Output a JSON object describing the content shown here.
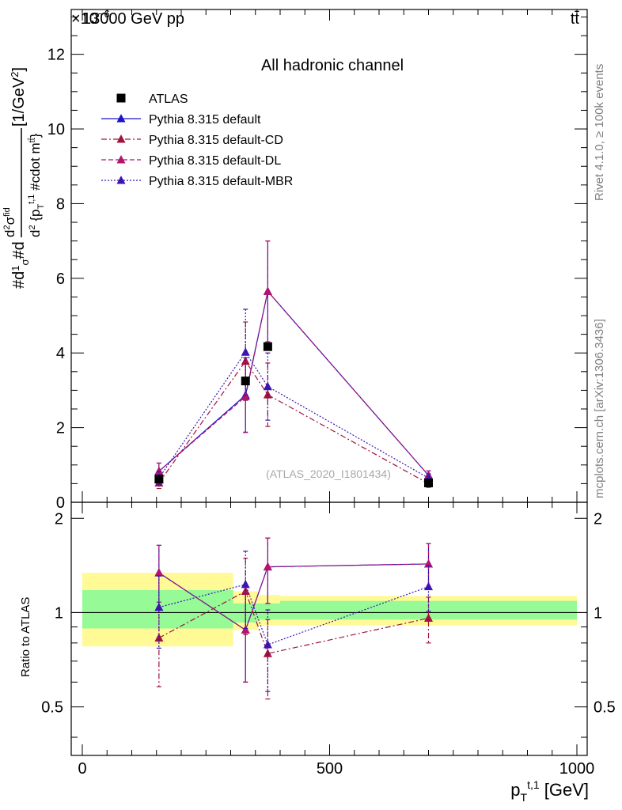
{
  "header": {
    "energy_label": "13000 GeV pp",
    "exponent_label": "×10",
    "exponent_power": "−6",
    "process_label": "tt̄"
  },
  "side_labels": {
    "rivet": "Rivet 4.1.0, ≥ 100k events",
    "mcplots": "mcplots.cern.ch [arXiv:1306.3436]"
  },
  "watermark": "(ATLAS_2020_I1801434)",
  "chart_data": [
    {
      "type": "line",
      "title": "All hadronic channel",
      "ylabel": "#d#frac{1}{σ}#d#frac{d^{2}σ^{fid}}{d^{2} {p_{T}^{t,1} #cdot m^{tt̄}}} [1/GeV²]",
      "xlim": [
        0,
        1000
      ],
      "ylim": [
        0,
        13.2
      ],
      "y_multiplier": "1e-6",
      "yticks": [
        0,
        2,
        4,
        6,
        8,
        10,
        12
      ],
      "xticks": [
        0,
        500,
        1000
      ],
      "legend_position": "top-left",
      "series": [
        {
          "name": "ATLAS",
          "marker": "square",
          "color": "#000000",
          "points": [
            {
              "x": 155,
              "y": 0.62
            },
            {
              "x": 330,
              "y": 3.25
            },
            {
              "x": 375,
              "y": 4.17
            },
            {
              "x": 700,
              "y": 0.52
            }
          ]
        },
        {
          "name": "Pythia 8.315 default",
          "marker": "triangle",
          "color": "#1b14c8",
          "line": "solid",
          "points": [
            {
              "x": 155,
              "y": 0.83,
              "err": 0.22
            },
            {
              "x": 330,
              "y": 2.87,
              "err": 1.0
            },
            {
              "x": 375,
              "y": 5.65,
              "err": 1.35
            },
            {
              "x": 700,
              "y": 0.72,
              "err": 0.12
            }
          ]
        },
        {
          "name": "Pythia 8.315 default-CD",
          "marker": "triangle",
          "color": "#a0143c",
          "line": "dashdot",
          "points": [
            {
              "x": 155,
              "y": 0.52,
              "err": 0.15
            },
            {
              "x": 330,
              "y": 3.78,
              "err": 1.05
            },
            {
              "x": 375,
              "y": 2.88,
              "err": 0.85
            },
            {
              "x": 700,
              "y": 0.5,
              "err": 0.1
            }
          ]
        },
        {
          "name": "Pythia 8.315 default-DL",
          "marker": "triangle",
          "color": "#b4146e",
          "line": "dashed",
          "points": [
            {
              "x": 155,
              "y": 0.83,
              "err": 0.22
            },
            {
              "x": 330,
              "y": 2.83,
              "err": 0.95
            },
            {
              "x": 375,
              "y": 5.65,
              "err": 1.35
            },
            {
              "x": 700,
              "y": 0.72,
              "err": 0.12
            }
          ]
        },
        {
          "name": "Pythia 8.315 default-MBR",
          "marker": "triangle",
          "color": "#3c14b4",
          "line": "dotted",
          "points": [
            {
              "x": 155,
              "y": 0.65,
              "err": 0.18
            },
            {
              "x": 330,
              "y": 4.02,
              "err": 1.15
            },
            {
              "x": 375,
              "y": 3.1,
              "err": 0.9
            },
            {
              "x": 700,
              "y": 0.65,
              "err": 0.11
            }
          ]
        }
      ]
    },
    {
      "type": "line",
      "title": "",
      "xlabel": "p_T^{t,1} [GeV]",
      "ylabel": "Ratio to ATLAS",
      "xlim": [
        0,
        1000
      ],
      "ylim": [
        0.35,
        2.25
      ],
      "yticks": [
        0.5,
        1,
        2
      ],
      "xticks": [
        0,
        500,
        1000
      ],
      "bands": [
        {
          "x0": 0,
          "x1": 305,
          "yellow": [
            0.78,
            1.34
          ],
          "green": [
            0.89,
            1.18
          ]
        },
        {
          "x0": 305,
          "x1": 355,
          "yellow": [
            0.88,
            1.17
          ],
          "green": [
            0.93,
            1.07
          ]
        },
        {
          "x0": 355,
          "x1": 400,
          "yellow": [
            0.91,
            1.14
          ],
          "green": [
            0.95,
            1.07
          ]
        },
        {
          "x0": 400,
          "x1": 1000,
          "yellow": [
            0.91,
            1.13
          ],
          "green": [
            0.95,
            1.09
          ]
        }
      ],
      "series": [
        {
          "name": "Pythia 8.315 default",
          "color": "#1b14c8",
          "line": "solid",
          "points": [
            {
              "x": 155,
              "y": 1.34,
              "err": 0.3
            },
            {
              "x": 330,
              "y": 0.88,
              "err": 0.28
            },
            {
              "x": 375,
              "y": 1.4,
              "err": 0.33
            },
            {
              "x": 700,
              "y": 1.43,
              "err": 0.23
            }
          ]
        },
        {
          "name": "Pythia 8.315 default-CD",
          "color": "#a0143c",
          "line": "dashdot",
          "points": [
            {
              "x": 155,
              "y": 0.83,
              "err": 0.25
            },
            {
              "x": 330,
              "y": 1.17,
              "err": 0.32
            },
            {
              "x": 375,
              "y": 0.74,
              "err": 0.21
            },
            {
              "x": 700,
              "y": 0.96,
              "err": 0.16
            }
          ]
        },
        {
          "name": "Pythia 8.315 default-DL",
          "color": "#b4146e",
          "line": "dashed",
          "points": [
            {
              "x": 155,
              "y": 1.34,
              "err": 0.3
            },
            {
              "x": 330,
              "y": 0.88,
              "err": 0.28
            },
            {
              "x": 375,
              "y": 1.4,
              "err": 0.33
            },
            {
              "x": 700,
              "y": 1.43,
              "err": 0.23
            }
          ]
        },
        {
          "name": "Pythia 8.315 default-MBR",
          "color": "#3c14b4",
          "line": "dotted",
          "points": [
            {
              "x": 155,
              "y": 1.04,
              "err": 0.27
            },
            {
              "x": 330,
              "y": 1.23,
              "err": 0.34
            },
            {
              "x": 375,
              "y": 0.79,
              "err": 0.23
            },
            {
              "x": 700,
              "y": 1.21,
              "err": 0.2
            }
          ]
        }
      ]
    }
  ]
}
